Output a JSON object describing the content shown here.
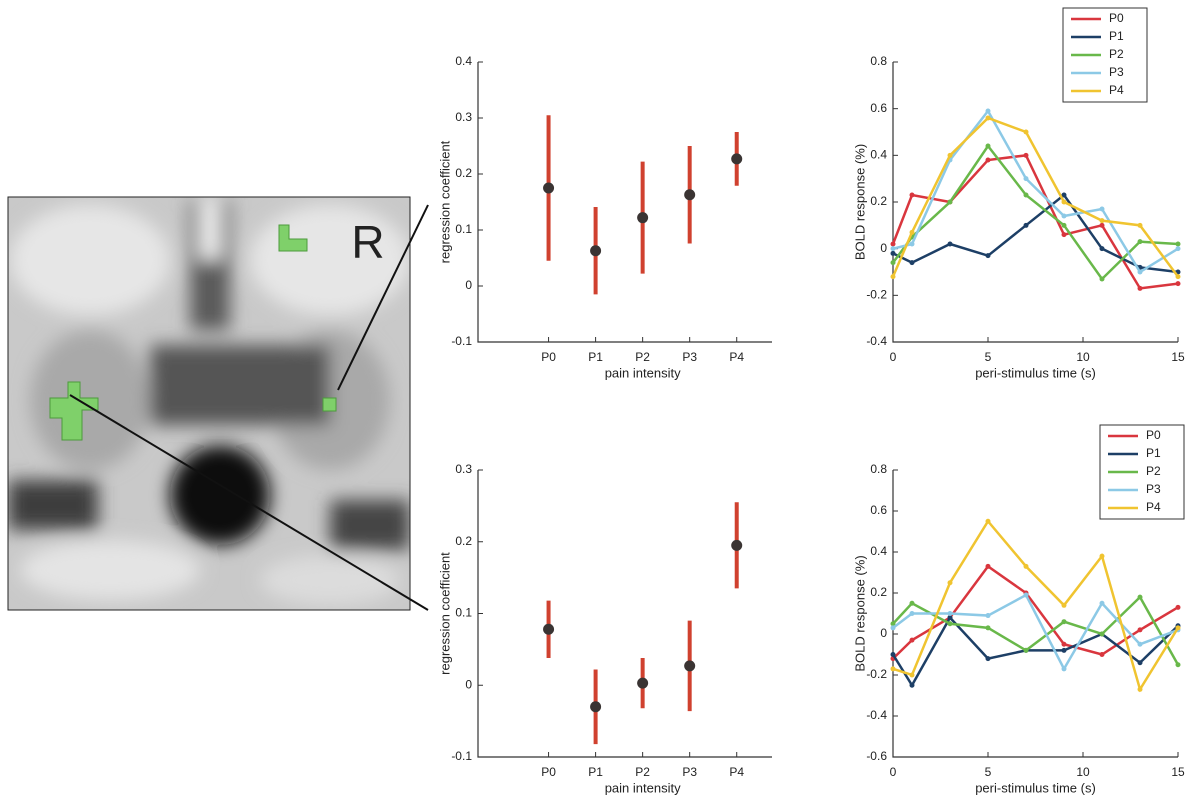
{
  "image": {
    "label": "R"
  },
  "chart_data": [
    {
      "type": "errorbar",
      "ylabel": "regression coefficient",
      "xlabel": "pain intensity",
      "categories": [
        "P0",
        "P1",
        "P2",
        "P3",
        "P4"
      ],
      "values": [
        0.175,
        0.063,
        0.122,
        0.163,
        0.227
      ],
      "errors": [
        0.13,
        0.078,
        0.1,
        0.087,
        0.048
      ],
      "color": "#d0412f",
      "marker_color": "#3a3433",
      "ylim": [
        -0.1,
        0.4
      ],
      "yticks": [
        -0.1,
        0,
        0.1,
        0.2,
        0.3,
        0.4
      ]
    },
    {
      "type": "errorbar",
      "ylabel": "regression coefficient",
      "xlabel": "pain intensity",
      "categories": [
        "P0",
        "P1",
        "P2",
        "P3",
        "P4"
      ],
      "values": [
        0.078,
        -0.03,
        0.003,
        0.027,
        0.195
      ],
      "errors": [
        0.04,
        0.052,
        0.035,
        0.063,
        0.06
      ],
      "color": "#d0412f",
      "marker_color": "#3a3433",
      "ylim": [
        -0.1,
        0.3
      ],
      "yticks": [
        -0.1,
        0,
        0.1,
        0.2,
        0.3
      ]
    },
    {
      "type": "line",
      "ylabel": "BOLD response (%)",
      "xlabel": "peri-stimulus time (s)",
      "x": [
        0,
        1,
        3,
        5,
        7,
        9,
        11,
        13,
        15
      ],
      "series": [
        {
          "name": "P0",
          "color": "#d9363e",
          "values": [
            0.02,
            0.23,
            0.2,
            0.38,
            0.4,
            0.06,
            0.1,
            -0.17,
            -0.15
          ]
        },
        {
          "name": "P1",
          "color": "#1d3f66",
          "values": [
            -0.02,
            -0.06,
            0.02,
            -0.03,
            0.1,
            0.23,
            0.0,
            -0.08,
            -0.1
          ]
        },
        {
          "name": "P2",
          "color": "#69b84a",
          "values": [
            -0.06,
            0.05,
            0.2,
            0.44,
            0.23,
            0.1,
            -0.13,
            0.03,
            0.02
          ]
        },
        {
          "name": "P3",
          "color": "#8cc9e6",
          "values": [
            0.0,
            0.02,
            0.38,
            0.59,
            0.3,
            0.14,
            0.17,
            -0.1,
            0.0
          ]
        },
        {
          "name": "P4",
          "color": "#f0c430",
          "values": [
            -0.12,
            0.07,
            0.4,
            0.56,
            0.5,
            0.2,
            0.12,
            0.1,
            -0.12
          ]
        }
      ],
      "xlim": [
        0,
        15
      ],
      "xticks": [
        0,
        5,
        10,
        15
      ],
      "ylim": [
        -0.4,
        0.8
      ],
      "yticks": [
        -0.4,
        -0.2,
        0,
        0.2,
        0.4,
        0.6,
        0.8
      ],
      "legend": "upper right"
    },
    {
      "type": "line",
      "ylabel": "BOLD response (%)",
      "xlabel": "peri-stimulus time (s)",
      "x": [
        0,
        1,
        3,
        5,
        7,
        9,
        11,
        13,
        15
      ],
      "series": [
        {
          "name": "P0",
          "color": "#d9363e",
          "values": [
            -0.12,
            -0.03,
            0.08,
            0.33,
            0.2,
            -0.05,
            -0.1,
            0.02,
            0.13
          ]
        },
        {
          "name": "P1",
          "color": "#1d3f66",
          "values": [
            -0.1,
            -0.25,
            0.08,
            -0.12,
            -0.08,
            -0.08,
            0.0,
            -0.14,
            0.04
          ]
        },
        {
          "name": "P2",
          "color": "#69b84a",
          "values": [
            0.05,
            0.15,
            0.05,
            0.03,
            -0.08,
            0.06,
            0.0,
            0.18,
            -0.15
          ]
        },
        {
          "name": "P3",
          "color": "#8cc9e6",
          "values": [
            0.03,
            0.1,
            0.1,
            0.09,
            0.19,
            -0.17,
            0.15,
            -0.05,
            0.02
          ]
        },
        {
          "name": "P4",
          "color": "#f0c430",
          "values": [
            -0.17,
            -0.2,
            0.25,
            0.55,
            0.33,
            0.14,
            0.38,
            -0.27,
            0.03
          ]
        }
      ],
      "xlim": [
        0,
        15
      ],
      "xticks": [
        0,
        5,
        10,
        15
      ],
      "ylim": [
        -0.6,
        0.8
      ],
      "yticks": [
        -0.6,
        -0.4,
        -0.2,
        0,
        0.2,
        0.4,
        0.6,
        0.8
      ],
      "legend": "upper right"
    }
  ]
}
